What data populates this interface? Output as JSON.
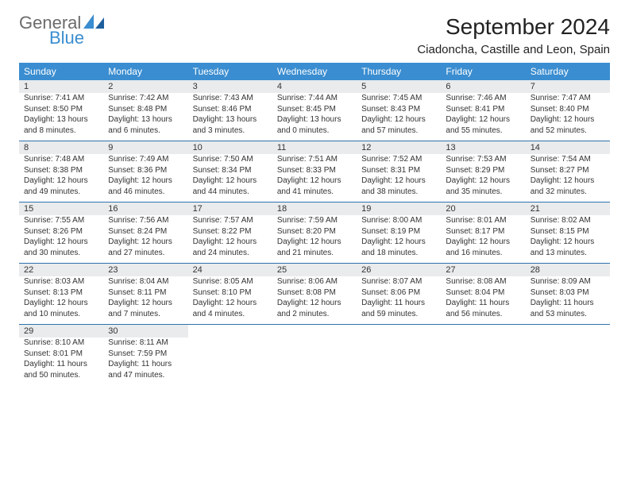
{
  "logo": {
    "general": "General",
    "blue": "Blue"
  },
  "title": "September 2024",
  "subtitle": "Ciadoncha, Castille and Leon, Spain",
  "colors": {
    "header_bg": "#3a8dd0",
    "daynum_bg": "#e9ebec",
    "border": "#2f72ad",
    "text": "#333333"
  },
  "day_names": [
    "Sunday",
    "Monday",
    "Tuesday",
    "Wednesday",
    "Thursday",
    "Friday",
    "Saturday"
  ],
  "weeks": [
    [
      {
        "n": "1",
        "sr": "Sunrise: 7:41 AM",
        "ss": "Sunset: 8:50 PM",
        "d1": "Daylight: 13 hours",
        "d2": "and 8 minutes."
      },
      {
        "n": "2",
        "sr": "Sunrise: 7:42 AM",
        "ss": "Sunset: 8:48 PM",
        "d1": "Daylight: 13 hours",
        "d2": "and 6 minutes."
      },
      {
        "n": "3",
        "sr": "Sunrise: 7:43 AM",
        "ss": "Sunset: 8:46 PM",
        "d1": "Daylight: 13 hours",
        "d2": "and 3 minutes."
      },
      {
        "n": "4",
        "sr": "Sunrise: 7:44 AM",
        "ss": "Sunset: 8:45 PM",
        "d1": "Daylight: 13 hours",
        "d2": "and 0 minutes."
      },
      {
        "n": "5",
        "sr": "Sunrise: 7:45 AM",
        "ss": "Sunset: 8:43 PM",
        "d1": "Daylight: 12 hours",
        "d2": "and 57 minutes."
      },
      {
        "n": "6",
        "sr": "Sunrise: 7:46 AM",
        "ss": "Sunset: 8:41 PM",
        "d1": "Daylight: 12 hours",
        "d2": "and 55 minutes."
      },
      {
        "n": "7",
        "sr": "Sunrise: 7:47 AM",
        "ss": "Sunset: 8:40 PM",
        "d1": "Daylight: 12 hours",
        "d2": "and 52 minutes."
      }
    ],
    [
      {
        "n": "8",
        "sr": "Sunrise: 7:48 AM",
        "ss": "Sunset: 8:38 PM",
        "d1": "Daylight: 12 hours",
        "d2": "and 49 minutes."
      },
      {
        "n": "9",
        "sr": "Sunrise: 7:49 AM",
        "ss": "Sunset: 8:36 PM",
        "d1": "Daylight: 12 hours",
        "d2": "and 46 minutes."
      },
      {
        "n": "10",
        "sr": "Sunrise: 7:50 AM",
        "ss": "Sunset: 8:34 PM",
        "d1": "Daylight: 12 hours",
        "d2": "and 44 minutes."
      },
      {
        "n": "11",
        "sr": "Sunrise: 7:51 AM",
        "ss": "Sunset: 8:33 PM",
        "d1": "Daylight: 12 hours",
        "d2": "and 41 minutes."
      },
      {
        "n": "12",
        "sr": "Sunrise: 7:52 AM",
        "ss": "Sunset: 8:31 PM",
        "d1": "Daylight: 12 hours",
        "d2": "and 38 minutes."
      },
      {
        "n": "13",
        "sr": "Sunrise: 7:53 AM",
        "ss": "Sunset: 8:29 PM",
        "d1": "Daylight: 12 hours",
        "d2": "and 35 minutes."
      },
      {
        "n": "14",
        "sr": "Sunrise: 7:54 AM",
        "ss": "Sunset: 8:27 PM",
        "d1": "Daylight: 12 hours",
        "d2": "and 32 minutes."
      }
    ],
    [
      {
        "n": "15",
        "sr": "Sunrise: 7:55 AM",
        "ss": "Sunset: 8:26 PM",
        "d1": "Daylight: 12 hours",
        "d2": "and 30 minutes."
      },
      {
        "n": "16",
        "sr": "Sunrise: 7:56 AM",
        "ss": "Sunset: 8:24 PM",
        "d1": "Daylight: 12 hours",
        "d2": "and 27 minutes."
      },
      {
        "n": "17",
        "sr": "Sunrise: 7:57 AM",
        "ss": "Sunset: 8:22 PM",
        "d1": "Daylight: 12 hours",
        "d2": "and 24 minutes."
      },
      {
        "n": "18",
        "sr": "Sunrise: 7:59 AM",
        "ss": "Sunset: 8:20 PM",
        "d1": "Daylight: 12 hours",
        "d2": "and 21 minutes."
      },
      {
        "n": "19",
        "sr": "Sunrise: 8:00 AM",
        "ss": "Sunset: 8:19 PM",
        "d1": "Daylight: 12 hours",
        "d2": "and 18 minutes."
      },
      {
        "n": "20",
        "sr": "Sunrise: 8:01 AM",
        "ss": "Sunset: 8:17 PM",
        "d1": "Daylight: 12 hours",
        "d2": "and 16 minutes."
      },
      {
        "n": "21",
        "sr": "Sunrise: 8:02 AM",
        "ss": "Sunset: 8:15 PM",
        "d1": "Daylight: 12 hours",
        "d2": "and 13 minutes."
      }
    ],
    [
      {
        "n": "22",
        "sr": "Sunrise: 8:03 AM",
        "ss": "Sunset: 8:13 PM",
        "d1": "Daylight: 12 hours",
        "d2": "and 10 minutes."
      },
      {
        "n": "23",
        "sr": "Sunrise: 8:04 AM",
        "ss": "Sunset: 8:11 PM",
        "d1": "Daylight: 12 hours",
        "d2": "and 7 minutes."
      },
      {
        "n": "24",
        "sr": "Sunrise: 8:05 AM",
        "ss": "Sunset: 8:10 PM",
        "d1": "Daylight: 12 hours",
        "d2": "and 4 minutes."
      },
      {
        "n": "25",
        "sr": "Sunrise: 8:06 AM",
        "ss": "Sunset: 8:08 PM",
        "d1": "Daylight: 12 hours",
        "d2": "and 2 minutes."
      },
      {
        "n": "26",
        "sr": "Sunrise: 8:07 AM",
        "ss": "Sunset: 8:06 PM",
        "d1": "Daylight: 11 hours",
        "d2": "and 59 minutes."
      },
      {
        "n": "27",
        "sr": "Sunrise: 8:08 AM",
        "ss": "Sunset: 8:04 PM",
        "d1": "Daylight: 11 hours",
        "d2": "and 56 minutes."
      },
      {
        "n": "28",
        "sr": "Sunrise: 8:09 AM",
        "ss": "Sunset: 8:03 PM",
        "d1": "Daylight: 11 hours",
        "d2": "and 53 minutes."
      }
    ],
    [
      {
        "n": "29",
        "sr": "Sunrise: 8:10 AM",
        "ss": "Sunset: 8:01 PM",
        "d1": "Daylight: 11 hours",
        "d2": "and 50 minutes."
      },
      {
        "n": "30",
        "sr": "Sunrise: 8:11 AM",
        "ss": "Sunset: 7:59 PM",
        "d1": "Daylight: 11 hours",
        "d2": "and 47 minutes."
      },
      null,
      null,
      null,
      null,
      null
    ]
  ]
}
